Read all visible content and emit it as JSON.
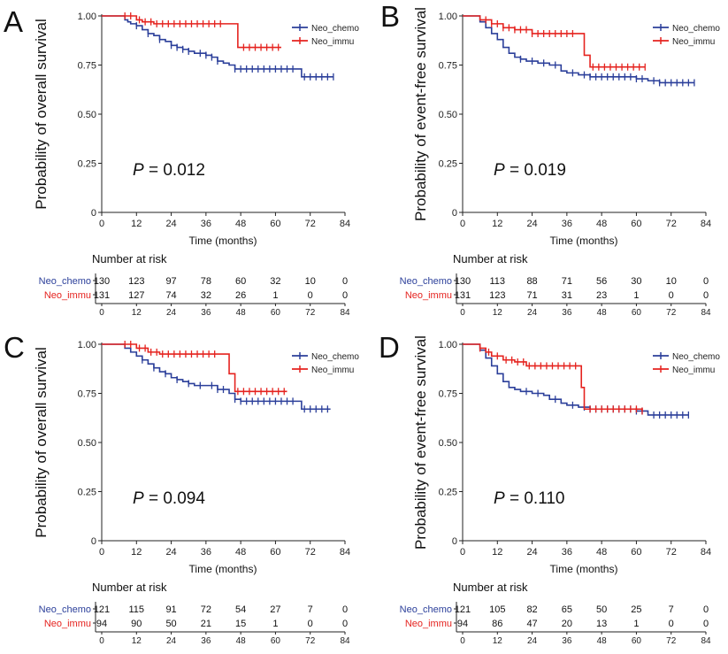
{
  "colors": {
    "chemo": "#2b3f9a",
    "immu": "#e5231f",
    "axis": "#222222"
  },
  "chart_data": [
    {
      "panel": "A",
      "type": "line",
      "ylabel": "Probability of overall survival",
      "xlabel": "Time (months)",
      "xlim": [
        0,
        84
      ],
      "ylim": [
        0,
        1
      ],
      "xticks": [
        "0",
        "12",
        "24",
        "36",
        "48",
        "60",
        "72",
        "84"
      ],
      "yticks": [
        "0",
        "0.25",
        "0.50",
        "0.75",
        "1.00"
      ],
      "pvalue": "0.012",
      "legend_placement": "top-right",
      "series": [
        {
          "name": "Neo_chemo",
          "x": [
            0,
            6,
            8,
            9,
            10,
            12,
            14,
            16,
            18,
            20,
            22,
            24,
            26,
            28,
            30,
            32,
            34,
            36,
            38,
            40,
            42,
            44,
            46,
            48,
            52,
            56,
            60,
            64,
            68,
            69,
            80
          ],
          "y": [
            1.0,
            1.0,
            0.98,
            0.97,
            0.96,
            0.95,
            0.93,
            0.91,
            0.9,
            0.88,
            0.87,
            0.85,
            0.84,
            0.83,
            0.82,
            0.81,
            0.81,
            0.8,
            0.79,
            0.77,
            0.76,
            0.75,
            0.73,
            0.73,
            0.73,
            0.73,
            0.73,
            0.73,
            0.73,
            0.69,
            0.69
          ],
          "censors": [
            12,
            16,
            20,
            24,
            26,
            28,
            30,
            34,
            36,
            38,
            40,
            46,
            48,
            50,
            52,
            54,
            56,
            58,
            60,
            62,
            64,
            66,
            70,
            72,
            74,
            76,
            78,
            80
          ]
        },
        {
          "name": "Neo_immu",
          "x": [
            0,
            8,
            12,
            14,
            18,
            44,
            47,
            62
          ],
          "y": [
            1.0,
            1.0,
            0.98,
            0.97,
            0.96,
            0.96,
            0.84,
            0.84
          ],
          "censors": [
            8,
            10,
            13,
            15,
            17,
            19,
            21,
            23,
            25,
            27,
            29,
            31,
            33,
            35,
            37,
            39,
            41,
            49,
            51,
            53,
            55,
            57,
            59,
            61
          ]
        }
      ],
      "risk_table": {
        "title": "Number at risk",
        "rows": [
          {
            "name": "Neo_chemo",
            "values": [
              "130",
              "123",
              "97",
              "78",
              "60",
              "32",
              "10",
              "0"
            ]
          },
          {
            "name": "Neo_immu",
            "values": [
              "131",
              "127",
              "74",
              "32",
              "26",
              "1",
              "0",
              "0"
            ]
          }
        ],
        "ticks": [
          "0",
          "12",
          "24",
          "36",
          "48",
          "60",
          "72",
          "84"
        ]
      }
    },
    {
      "panel": "B",
      "type": "line",
      "ylabel": "Probability of event-free survival",
      "xlabel": "Time (months)",
      "xlim": [
        0,
        84
      ],
      "ylim": [
        0,
        1
      ],
      "xticks": [
        "0",
        "12",
        "24",
        "36",
        "48",
        "60",
        "72",
        "84"
      ],
      "yticks": [
        "0",
        "0.25",
        "0.50",
        "0.75",
        "1.00"
      ],
      "pvalue": "0.019",
      "legend_placement": "top-right",
      "series": [
        {
          "name": "Neo_chemo",
          "x": [
            0,
            4,
            6,
            8,
            10,
            12,
            14,
            16,
            18,
            20,
            22,
            24,
            26,
            28,
            30,
            34,
            36,
            40,
            44,
            48,
            56,
            60,
            64,
            68,
            80
          ],
          "y": [
            1.0,
            1.0,
            0.97,
            0.94,
            0.91,
            0.88,
            0.84,
            0.81,
            0.79,
            0.78,
            0.77,
            0.77,
            0.76,
            0.76,
            0.75,
            0.72,
            0.71,
            0.7,
            0.69,
            0.69,
            0.69,
            0.68,
            0.67,
            0.66,
            0.66
          ],
          "censors": [
            20,
            24,
            28,
            32,
            38,
            42,
            44,
            46,
            48,
            50,
            52,
            54,
            56,
            58,
            60,
            62,
            66,
            68,
            70,
            72,
            74,
            76,
            78,
            80
          ]
        },
        {
          "name": "Neo_immu",
          "x": [
            0,
            4,
            6,
            10,
            14,
            18,
            24,
            40,
            42,
            44,
            63
          ],
          "y": [
            1.0,
            1.0,
            0.98,
            0.96,
            0.94,
            0.93,
            0.91,
            0.91,
            0.8,
            0.74,
            0.74
          ],
          "censors": [
            8,
            10,
            12,
            14,
            16,
            18,
            20,
            22,
            24,
            26,
            28,
            30,
            32,
            34,
            36,
            38,
            45,
            47,
            49,
            51,
            53,
            55,
            57,
            59,
            61,
            63
          ]
        }
      ],
      "risk_table": {
        "title": "Number at risk",
        "rows": [
          {
            "name": "Neo_chemo",
            "values": [
              "130",
              "113",
              "88",
              "71",
              "56",
              "30",
              "10",
              "0"
            ]
          },
          {
            "name": "Neo_immu",
            "values": [
              "131",
              "123",
              "71",
              "31",
              "23",
              "1",
              "0",
              "0"
            ]
          }
        ],
        "ticks": [
          "0",
          "12",
          "24",
          "36",
          "48",
          "60",
          "72",
          "84"
        ]
      }
    },
    {
      "panel": "C",
      "type": "line",
      "ylabel": "Probability of overall survival",
      "xlabel": "Time (months)",
      "xlim": [
        0,
        84
      ],
      "ylim": [
        0,
        1
      ],
      "xticks": [
        "0",
        "12",
        "24",
        "36",
        "48",
        "60",
        "72",
        "84"
      ],
      "yticks": [
        "0",
        "0.25",
        "0.50",
        "0.75",
        "1.00"
      ],
      "pvalue": "0.094",
      "legend_placement": "top-right",
      "series": [
        {
          "name": "Neo_chemo",
          "x": [
            0,
            6,
            8,
            10,
            12,
            14,
            16,
            18,
            20,
            22,
            24,
            26,
            28,
            30,
            32,
            36,
            40,
            44,
            46,
            48,
            52,
            60,
            68,
            69,
            79
          ],
          "y": [
            1.0,
            1.0,
            0.98,
            0.96,
            0.94,
            0.92,
            0.9,
            0.88,
            0.86,
            0.85,
            0.83,
            0.82,
            0.81,
            0.8,
            0.79,
            0.79,
            0.77,
            0.75,
            0.72,
            0.71,
            0.71,
            0.71,
            0.71,
            0.67,
            0.67
          ],
          "censors": [
            14,
            18,
            22,
            26,
            30,
            34,
            38,
            40,
            42,
            46,
            48,
            50,
            52,
            54,
            56,
            58,
            60,
            62,
            64,
            66,
            70,
            72,
            74,
            76,
            78
          ]
        },
        {
          "name": "Neo_immu",
          "x": [
            0,
            8,
            12,
            16,
            20,
            42,
            44,
            46,
            64
          ],
          "y": [
            1.0,
            1.0,
            0.98,
            0.96,
            0.95,
            0.95,
            0.85,
            0.76,
            0.76
          ],
          "censors": [
            8,
            10,
            13,
            15,
            17,
            19,
            21,
            23,
            25,
            27,
            29,
            31,
            33,
            35,
            37,
            39,
            47,
            49,
            51,
            53,
            55,
            57,
            59,
            61,
            63
          ]
        }
      ],
      "risk_table": {
        "title": "Number at risk",
        "rows": [
          {
            "name": "Neo_chemo",
            "values": [
              "121",
              "115",
              "91",
              "72",
              "54",
              "27",
              "7",
              "0"
            ]
          },
          {
            "name": "Neo_immu",
            "values": [
              "94",
              "90",
              "50",
              "21",
              "15",
              "1",
              "0",
              "0"
            ]
          }
        ],
        "ticks": [
          "0",
          "12",
          "24",
          "36",
          "48",
          "60",
          "72",
          "84"
        ]
      }
    },
    {
      "panel": "D",
      "type": "line",
      "ylabel": "Probability of event-free survival",
      "xlabel": "Time (months)",
      "xlim": [
        0,
        84
      ],
      "ylim": [
        0,
        1
      ],
      "xticks": [
        "0",
        "12",
        "24",
        "36",
        "48",
        "60",
        "72",
        "84"
      ],
      "yticks": [
        "0",
        "0.25",
        "0.50",
        "0.75",
        "1.00"
      ],
      "pvalue": "0.110",
      "legend_placement": "top-right",
      "series": [
        {
          "name": "Neo_chemo",
          "x": [
            0,
            4,
            6,
            8,
            10,
            12,
            14,
            16,
            18,
            20,
            24,
            28,
            30,
            34,
            36,
            40,
            44,
            48,
            56,
            60,
            64,
            78
          ],
          "y": [
            1.0,
            1.0,
            0.97,
            0.93,
            0.89,
            0.85,
            0.81,
            0.78,
            0.77,
            0.76,
            0.75,
            0.74,
            0.72,
            0.7,
            0.69,
            0.68,
            0.67,
            0.67,
            0.67,
            0.66,
            0.64,
            0.64
          ],
          "censors": [
            22,
            26,
            32,
            38,
            42,
            44,
            46,
            48,
            50,
            52,
            54,
            56,
            58,
            60,
            62,
            66,
            68,
            70,
            72,
            74,
            76,
            78
          ]
        },
        {
          "name": "Neo_immu",
          "x": [
            0,
            4,
            6,
            8,
            10,
            14,
            18,
            22,
            40,
            41,
            42,
            62
          ],
          "y": [
            1.0,
            1.0,
            0.98,
            0.96,
            0.94,
            0.92,
            0.91,
            0.89,
            0.89,
            0.78,
            0.67,
            0.66
          ],
          "censors": [
            6,
            9,
            12,
            15,
            17,
            19,
            21,
            23,
            25,
            27,
            29,
            31,
            33,
            35,
            37,
            39,
            44,
            46,
            48,
            50,
            52,
            54,
            56,
            58,
            60,
            62
          ]
        }
      ],
      "risk_table": {
        "title": "Number at risk",
        "rows": [
          {
            "name": "Neo_chemo",
            "values": [
              "121",
              "105",
              "82",
              "65",
              "50",
              "25",
              "7",
              "0"
            ]
          },
          {
            "name": "Neo_immu",
            "values": [
              "94",
              "86",
              "47",
              "20",
              "13",
              "1",
              "0",
              "0"
            ]
          }
        ],
        "ticks": [
          "0",
          "12",
          "24",
          "36",
          "48",
          "60",
          "72",
          "84"
        ]
      }
    }
  ]
}
